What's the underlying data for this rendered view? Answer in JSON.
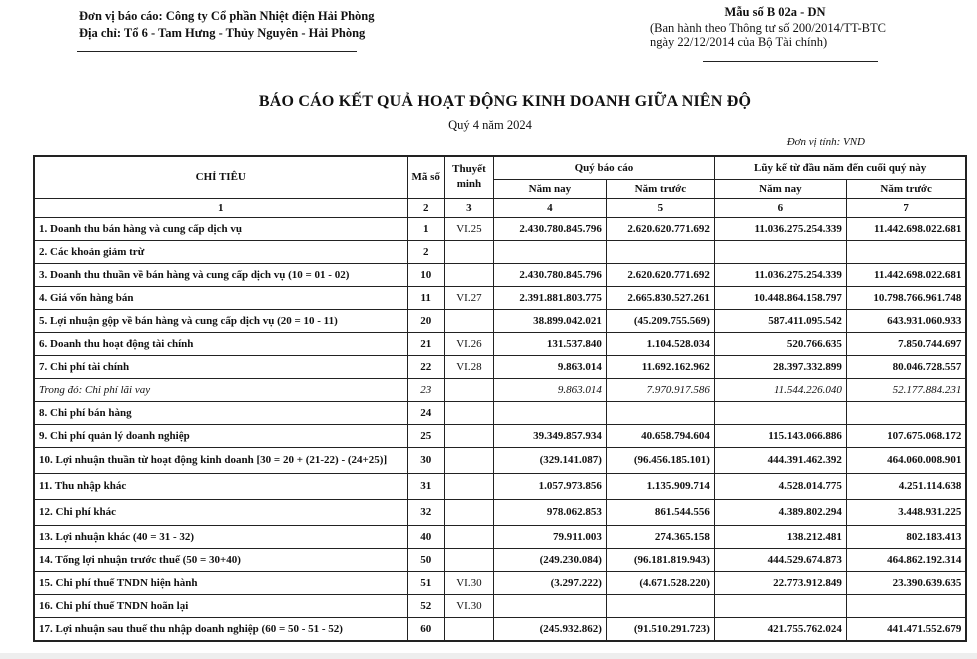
{
  "header": {
    "company": "Đơn vị báo cáo: Công ty Cổ phần Nhiệt điện Hải Phòng",
    "address": "Địa chỉ: Tổ 6 - Tam Hưng - Thủy Nguyên - Hải Phòng",
    "form_no": "Mẫu số B 02a - DN",
    "issued_1": "(Ban hành theo Thông tư số 200/2014/TT-BTC",
    "issued_2": "ngày 22/12/2014 của Bộ Tài chính)"
  },
  "title": "BÁO CÁO KẾT QUẢ HOẠT ĐỘNG KINH DOANH GIỮA NIÊN ĐỘ",
  "period": "Quý 4 năm 2024",
  "unit": "Đơn vị tính: VND",
  "table": {
    "headers": {
      "indicator": "CHỈ TIÊU",
      "code": "Mã số",
      "note": "Thuyết minh",
      "quarter": "Quý báo cáo",
      "ytd": "Lũy kế từ đầu năm đến cuối quý này",
      "this_year": "Năm nay",
      "last_year": "Năm trước",
      "col_numbers": [
        "1",
        "2",
        "3",
        "4",
        "5",
        "6",
        "7"
      ]
    },
    "rows": [
      {
        "label": "1. Doanh thu bán hàng và cung cấp dịch vụ",
        "code": "1",
        "note": "VI.25",
        "q_now": "2.430.780.845.796",
        "q_prev": "2.620.620.771.692",
        "y_now": "11.036.275.254.339",
        "y_prev": "11.442.698.022.681"
      },
      {
        "label": "2. Các khoản giảm trừ",
        "code": "2",
        "note": "",
        "q_now": "",
        "q_prev": "",
        "y_now": "",
        "y_prev": ""
      },
      {
        "label": "3. Doanh thu thuần về bán hàng và cung cấp dịch vụ (10 = 01 - 02)",
        "code": "10",
        "note": "",
        "q_now": "2.430.780.845.796",
        "q_prev": "2.620.620.771.692",
        "y_now": "11.036.275.254.339",
        "y_prev": "11.442.698.022.681"
      },
      {
        "label": "4. Giá vốn hàng bán",
        "code": "11",
        "note": "VI.27",
        "q_now": "2.391.881.803.775",
        "q_prev": "2.665.830.527.261",
        "y_now": "10.448.864.158.797",
        "y_prev": "10.798.766.961.748"
      },
      {
        "label": "5. Lợi nhuận gộp về bán hàng và cung cấp dịch vụ (20 = 10 - 11)",
        "code": "20",
        "note": "",
        "q_now": "38.899.042.021",
        "q_prev": "(45.209.755.569)",
        "y_now": "587.411.095.542",
        "y_prev": "643.931.060.933"
      },
      {
        "label": "6. Doanh thu hoạt động tài chính",
        "code": "21",
        "note": "VI.26",
        "q_now": "131.537.840",
        "q_prev": "1.104.528.034",
        "y_now": "520.766.635",
        "y_prev": "7.850.744.697"
      },
      {
        "label": "7. Chi phí tài chính",
        "code": "22",
        "note": "VI.28",
        "q_now": "9.863.014",
        "q_prev": "11.692.162.962",
        "y_now": "28.397.332.899",
        "y_prev": "80.046.728.557"
      },
      {
        "label": "Trong đó: Chi phí lãi vay",
        "code": "23",
        "note": "",
        "q_now": "9.863.014",
        "q_prev": "7.970.917.586",
        "y_now": "11.544.226.040",
        "y_prev": "52.177.884.231"
      },
      {
        "label": "8. Chi phí bán hàng",
        "code": "24",
        "note": "",
        "q_now": "",
        "q_prev": "",
        "y_now": "",
        "y_prev": ""
      },
      {
        "label": "9. Chi phí quản lý doanh nghiệp",
        "code": "25",
        "note": "",
        "q_now": "39.349.857.934",
        "q_prev": "40.658.794.604",
        "y_now": "115.143.066.886",
        "y_prev": "107.675.068.172"
      },
      {
        "label": "10. Lợi nhuận thuần từ hoạt động kinh doanh [30 = 20 + (21-22) - (24+25)]",
        "code": "30",
        "note": "",
        "q_now": "(329.141.087)",
        "q_prev": "(96.456.185.101)",
        "y_now": "444.391.462.392",
        "y_prev": "464.060.008.901"
      },
      {
        "label": "11. Thu nhập khác",
        "code": "31",
        "note": "",
        "q_now": "1.057.973.856",
        "q_prev": "1.135.909.714",
        "y_now": "4.528.014.775",
        "y_prev": "4.251.114.638"
      },
      {
        "label": "12. Chi phí khác",
        "code": "32",
        "note": "",
        "q_now": "978.062.853",
        "q_prev": "861.544.556",
        "y_now": "4.389.802.294",
        "y_prev": "3.448.931.225"
      },
      {
        "label": "13. Lợi nhuận khác (40 = 31 - 32)",
        "code": "40",
        "note": "",
        "q_now": "79.911.003",
        "q_prev": "274.365.158",
        "y_now": "138.212.481",
        "y_prev": "802.183.413"
      },
      {
        "label": "14. Tổng lợi nhuận trước thuế (50 = 30+40)",
        "code": "50",
        "note": "",
        "q_now": "(249.230.084)",
        "q_prev": "(96.181.819.943)",
        "y_now": "444.529.674.873",
        "y_prev": "464.862.192.314"
      },
      {
        "label": "15. Chi phí thuế TNDN hiện hành",
        "code": "51",
        "note": "VI.30",
        "q_now": "(3.297.222)",
        "q_prev": "(4.671.528.220)",
        "y_now": "22.773.912.849",
        "y_prev": "23.390.639.635"
      },
      {
        "label": "16. Chi phí thuế TNDN hoãn lại",
        "code": "52",
        "note": "VI.30",
        "q_now": "",
        "q_prev": "",
        "y_now": "",
        "y_prev": ""
      },
      {
        "label": "17. Lợi nhuận sau thuế thu nhập doanh nghiệp (60 = 50 - 51 - 52)",
        "code": "60",
        "note": "",
        "q_now": "(245.932.862)",
        "q_prev": "(91.510.291.723)",
        "y_now": "421.755.762.024",
        "y_prev": "441.471.552.679"
      }
    ]
  }
}
